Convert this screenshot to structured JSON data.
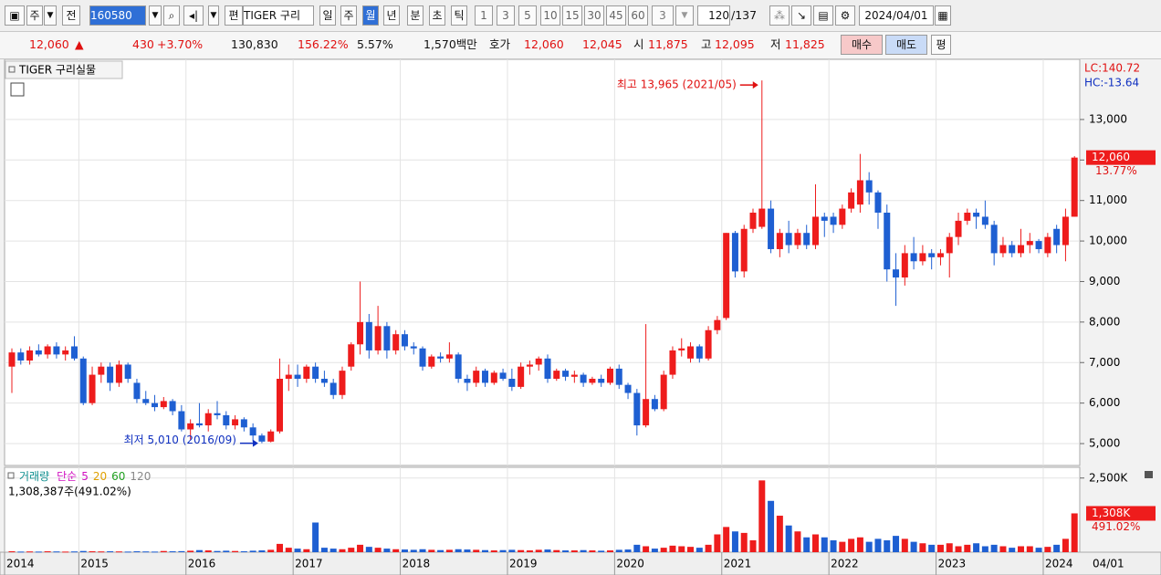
{
  "toolbar": {
    "unit": "주",
    "prev": "전",
    "code": "160580",
    "edit": "편",
    "name": "TIGER 구리",
    "periods": [
      "일",
      "주",
      "월",
      "년"
    ],
    "sub_periods": [
      "분",
      "초",
      "틱"
    ],
    "minutes": [
      "1",
      "3",
      "5",
      "10",
      "15",
      "30",
      "45",
      "60"
    ],
    "count": "3",
    "range": "120",
    "total": "/137",
    "date": "2024/04/01"
  },
  "quote_bar": {
    "price": "12,060",
    "arrow": "▲",
    "change": "430",
    "change_pct": "+3.70%",
    "volume": "130,830",
    "volume_ratio": "156.22%",
    "turnover": "5.57%",
    "amount": "1,570백만",
    "ask_label": "호가",
    "ask": "12,060",
    "bid": "12,045",
    "open_label": "시",
    "open": "11,875",
    "high_label": "고",
    "high": "12,095",
    "low_label": "저",
    "low": "11,825",
    "buy": "매수",
    "sell": "매도",
    "avg": "평"
  },
  "chart_data": [
    {
      "type": "candlestick",
      "title": "TIGER 구리실물",
      "lc": "LC:140.72",
      "hc": "HC:-13.64",
      "up_color": "#ee1c1c",
      "down_color": "#1e5fd2",
      "grid": true,
      "x_labels": [
        "2014",
        "2015",
        "2016",
        "2017",
        "2018",
        "2019",
        "2020",
        "2021",
        "2022",
        "2023",
        "2024"
      ],
      "last_date": "04/01",
      "max_annotation": "최고 13,965 (2021/05)",
      "min_annotation": "최저 5,010 (2016/09)",
      "last_price": {
        "value": 12060,
        "label": "12,060"
      },
      "last_change": {
        "value": 13.77,
        "label": "13.77%"
      },
      "ylim": [
        4460,
        14440
      ],
      "yticks": [
        {
          "value": 5000,
          "label": "5,000"
        },
        {
          "value": 6000,
          "label": "6,000"
        },
        {
          "value": 7000,
          "label": "7,000"
        },
        {
          "value": 8000,
          "label": "8,000"
        },
        {
          "value": 9000,
          "label": "9,000"
        },
        {
          "value": 10000,
          "label": "10,000"
        },
        {
          "value": 11000,
          "label": "11,000"
        },
        {
          "value": 12000,
          "label": "12,000"
        },
        {
          "value": 13000,
          "label": "13,000"
        }
      ],
      "ohlc": [
        [
          6900,
          7350,
          6250,
          7250
        ],
        [
          7250,
          7350,
          6950,
          7050
        ],
        [
          7050,
          7400,
          6950,
          7300
        ],
        [
          7300,
          7450,
          7150,
          7200
        ],
        [
          7200,
          7450,
          7100,
          7400
        ],
        [
          7400,
          7500,
          7100,
          7200
        ],
        [
          7200,
          7400,
          7050,
          7300
        ],
        [
          7400,
          7650,
          7050,
          7100
        ],
        [
          7100,
          7150,
          5950,
          6000
        ],
        [
          6000,
          6900,
          5950,
          6700
        ],
        [
          6700,
          7000,
          6500,
          6900
        ],
        [
          6900,
          7000,
          6300,
          6500
        ],
        [
          6500,
          7050,
          6400,
          6950
        ],
        [
          6950,
          7000,
          6500,
          6600
        ],
        [
          6500,
          6600,
          6000,
          6100
        ],
        [
          6100,
          6300,
          5950,
          6000
        ],
        [
          6000,
          6200,
          5800,
          5900
        ],
        [
          5900,
          6150,
          5850,
          6050
        ],
        [
          6050,
          6100,
          5700,
          5800
        ],
        [
          5800,
          5950,
          5300,
          5350
        ],
        [
          5350,
          5600,
          5100,
          5500
        ],
        [
          5500,
          6000,
          5400,
          5450
        ],
        [
          5450,
          5850,
          5300,
          5750
        ],
        [
          5750,
          6050,
          5600,
          5700
        ],
        [
          5700,
          5800,
          5350,
          5450
        ],
        [
          5450,
          5700,
          5350,
          5600
        ],
        [
          5600,
          5650,
          5300,
          5400
        ],
        [
          5400,
          5500,
          5050,
          5200
        ],
        [
          5200,
          5250,
          5010,
          5050
        ],
        [
          5050,
          5350,
          5030,
          5300
        ],
        [
          5300,
          7100,
          5250,
          6600
        ],
        [
          6600,
          6950,
          6300,
          6700
        ],
        [
          6700,
          6950,
          6400,
          6600
        ],
        [
          6600,
          6950,
          6500,
          6900
        ],
        [
          6900,
          7000,
          6500,
          6600
        ],
        [
          6600,
          6800,
          6400,
          6500
        ],
        [
          6500,
          6600,
          6100,
          6200
        ],
        [
          6200,
          6900,
          6100,
          6800
        ],
        [
          6900,
          7500,
          6800,
          7450
        ],
        [
          7450,
          9000,
          7200,
          8000
        ],
        [
          8000,
          8200,
          7100,
          7300
        ],
        [
          7300,
          8400,
          7200,
          7900
        ],
        [
          7900,
          8000,
          7100,
          7300
        ],
        [
          7300,
          7800,
          7200,
          7700
        ],
        [
          7700,
          7800,
          7300,
          7400
        ],
        [
          7400,
          7500,
          7200,
          7350
        ],
        [
          7350,
          7400,
          6800,
          6900
        ],
        [
          6900,
          7200,
          6850,
          7150
        ],
        [
          7150,
          7250,
          7000,
          7100
        ],
        [
          7100,
          7500,
          7000,
          7200
        ],
        [
          7200,
          7250,
          6500,
          6600
        ],
        [
          6600,
          6700,
          6300,
          6500
        ],
        [
          6500,
          6900,
          6400,
          6800
        ],
        [
          6800,
          6850,
          6400,
          6500
        ],
        [
          6500,
          6800,
          6450,
          6750
        ],
        [
          6750,
          6850,
          6550,
          6600
        ],
        [
          6600,
          6850,
          6300,
          6400
        ],
        [
          6400,
          7000,
          6350,
          6900
        ],
        [
          6900,
          7050,
          6700,
          6950
        ],
        [
          6950,
          7150,
          6800,
          7100
        ],
        [
          7100,
          7200,
          6500,
          6600
        ],
        [
          6600,
          6850,
          6550,
          6800
        ],
        [
          6800,
          6850,
          6550,
          6650
        ],
        [
          6650,
          6800,
          6500,
          6700
        ],
        [
          6700,
          6750,
          6400,
          6500
        ],
        [
          6500,
          6650,
          6450,
          6600
        ],
        [
          6600,
          6700,
          6400,
          6500
        ],
        [
          6500,
          6900,
          6450,
          6850
        ],
        [
          6850,
          6950,
          6350,
          6450
        ],
        [
          6450,
          6500,
          6100,
          6250
        ],
        [
          6250,
          6350,
          5200,
          5450
        ],
        [
          5450,
          7950,
          5400,
          6100
        ],
        [
          6100,
          6200,
          5800,
          5850
        ],
        [
          5850,
          6800,
          5800,
          6700
        ],
        [
          6700,
          7400,
          6600,
          7300
        ],
        [
          7300,
          7600,
          7150,
          7350
        ],
        [
          7100,
          7500,
          7000,
          7400
        ],
        [
          7400,
          7450,
          7000,
          7100
        ],
        [
          7100,
          7900,
          7050,
          7800
        ],
        [
          7800,
          8150,
          7700,
          8050
        ],
        [
          8100,
          10200,
          8050,
          10200
        ],
        [
          10200,
          10250,
          9100,
          9250
        ],
        [
          9250,
          10400,
          9100,
          10300
        ],
        [
          10300,
          10800,
          10200,
          10700
        ],
        [
          10350,
          13965,
          10300,
          10800
        ],
        [
          10800,
          11000,
          9700,
          9800
        ],
        [
          9800,
          10300,
          9600,
          10200
        ],
        [
          10200,
          10500,
          9700,
          9900
        ],
        [
          9900,
          10300,
          9800,
          10200
        ],
        [
          10200,
          10400,
          9800,
          9900
        ],
        [
          9900,
          11400,
          9800,
          10600
        ],
        [
          10600,
          10700,
          10100,
          10500
        ],
        [
          10600,
          10700,
          10200,
          10400
        ],
        [
          10400,
          10900,
          10300,
          10800
        ],
        [
          10800,
          11300,
          10700,
          11200
        ],
        [
          10900,
          12150,
          10700,
          11500
        ],
        [
          11500,
          11700,
          10900,
          11200
        ],
        [
          11200,
          11250,
          10300,
          10700
        ],
        [
          10700,
          10900,
          9000,
          9300
        ],
        [
          9300,
          9700,
          8400,
          9100
        ],
        [
          9100,
          9900,
          8900,
          9700
        ],
        [
          9700,
          10100,
          9300,
          9500
        ],
        [
          9500,
          9900,
          9400,
          9700
        ],
        [
          9700,
          9800,
          9300,
          9600
        ],
        [
          9600,
          9800,
          9400,
          9700
        ],
        [
          9700,
          10200,
          9100,
          10100
        ],
        [
          10100,
          10700,
          9900,
          10500
        ],
        [
          10500,
          10800,
          10400,
          10700
        ],
        [
          10700,
          10800,
          10300,
          10600
        ],
        [
          10600,
          11000,
          10300,
          10400
        ],
        [
          10400,
          10500,
          9400,
          9700
        ],
        [
          9700,
          10100,
          9600,
          9900
        ],
        [
          9900,
          10000,
          9600,
          9700
        ],
        [
          9700,
          10300,
          9600,
          9900
        ],
        [
          9900,
          10200,
          9700,
          10000
        ],
        [
          10000,
          10050,
          9700,
          9800
        ],
        [
          9700,
          10200,
          9600,
          10100
        ],
        [
          10300,
          10400,
          9700,
          9900
        ],
        [
          9900,
          10800,
          9500,
          10600
        ],
        [
          10600,
          12095,
          10600,
          12060
        ]
      ]
    },
    {
      "type": "bar",
      "title": "거래량",
      "ma_label": "단순",
      "ma_periods": [
        5,
        20,
        60,
        120
      ],
      "summary": "1,308,387주(491.02%)",
      "ylim": [
        0,
        2800000
      ],
      "yticks": [
        {
          "value": 2500000,
          "label": "2,500K"
        }
      ],
      "last_value": {
        "value": 1308000,
        "label": "1,308K"
      },
      "last_ratio": {
        "value": 491.02,
        "label": "491.02%"
      },
      "values": [
        30000,
        20000,
        25000,
        20000,
        30000,
        25000,
        20000,
        25000,
        40000,
        30000,
        25000,
        30000,
        25000,
        20000,
        30000,
        25000,
        20000,
        40000,
        30000,
        35000,
        50000,
        70000,
        60000,
        40000,
        50000,
        40000,
        30000,
        50000,
        60000,
        80000,
        280000,
        150000,
        120000,
        100000,
        1000000,
        150000,
        120000,
        100000,
        150000,
        250000,
        180000,
        150000,
        120000,
        100000,
        90000,
        80000,
        100000,
        80000,
        70000,
        80000,
        100000,
        90000,
        80000,
        70000,
        60000,
        70000,
        80000,
        70000,
        60000,
        80000,
        90000,
        70000,
        60000,
        60000,
        70000,
        60000,
        50000,
        60000,
        80000,
        90000,
        250000,
        200000,
        120000,
        150000,
        220000,
        200000,
        180000,
        150000,
        250000,
        600000,
        850000,
        700000,
        650000,
        400000,
        2420000,
        1730000,
        1230000,
        900000,
        700000,
        500000,
        600000,
        500000,
        400000,
        350000,
        450000,
        500000,
        350000,
        450000,
        400000,
        550000,
        450000,
        350000,
        300000,
        250000,
        250000,
        300000,
        200000,
        250000,
        300000,
        200000,
        250000,
        200000,
        150000,
        200000,
        200000,
        150000,
        180000,
        250000,
        450000,
        1308387
      ]
    }
  ]
}
